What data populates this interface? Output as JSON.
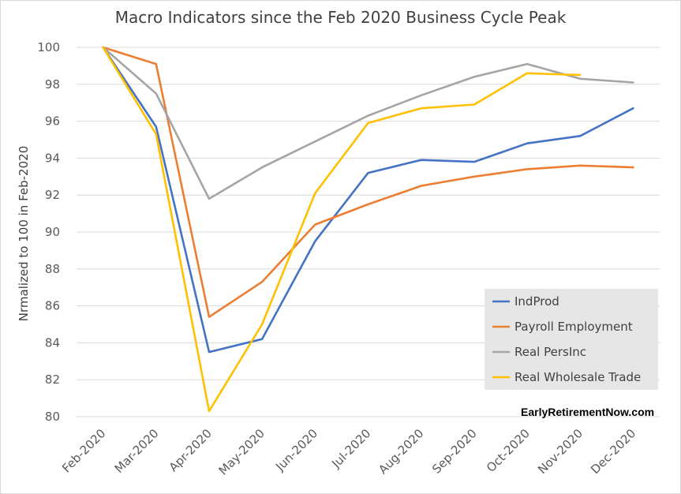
{
  "chart_data": {
    "type": "line",
    "title": "Macro Indicators since the Feb 2020 Business Cycle Peak",
    "xlabel": "",
    "ylabel": "Nrmalized to 100 in Feb-2020",
    "ylim": [
      80,
      100
    ],
    "yticks": [
      "80",
      "82",
      "84",
      "86",
      "88",
      "90",
      "92",
      "94",
      "96",
      "98",
      "100"
    ],
    "categories": [
      "Feb-2020",
      "Mar-2020",
      "Apr-2020",
      "May-2020",
      "Jun-2020",
      "Jul-2020",
      "Aug-2020",
      "Sep-2020",
      "Oct-2020",
      "Nov-2020",
      "Dec-2020"
    ],
    "grid": "horizontal",
    "legend": "bottom-right",
    "series": [
      {
        "name": "IndProd",
        "color": "#4472c4",
        "values": [
          100,
          95.7,
          83.5,
          84.2,
          89.5,
          93.2,
          93.9,
          93.8,
          94.8,
          95.2,
          96.7
        ]
      },
      {
        "name": "Payroll Employment",
        "color": "#ed7d31",
        "values": [
          100,
          99.1,
          85.4,
          87.3,
          90.4,
          91.5,
          92.5,
          93.0,
          93.4,
          93.6,
          93.5
        ]
      },
      {
        "name": "Real PersInc",
        "color": "#a5a5a5",
        "values": [
          100,
          97.5,
          91.8,
          93.5,
          94.9,
          96.3,
          97.4,
          98.4,
          99.1,
          98.3,
          98.1
        ]
      },
      {
        "name": "Real Wholesale Trade",
        "color": "#ffc000",
        "values": [
          100,
          95.3,
          80.3,
          85.0,
          92.1,
          95.9,
          96.7,
          96.9,
          98.6,
          98.5,
          null
        ]
      }
    ]
  },
  "watermark": "EarlyRetirementNow.com"
}
